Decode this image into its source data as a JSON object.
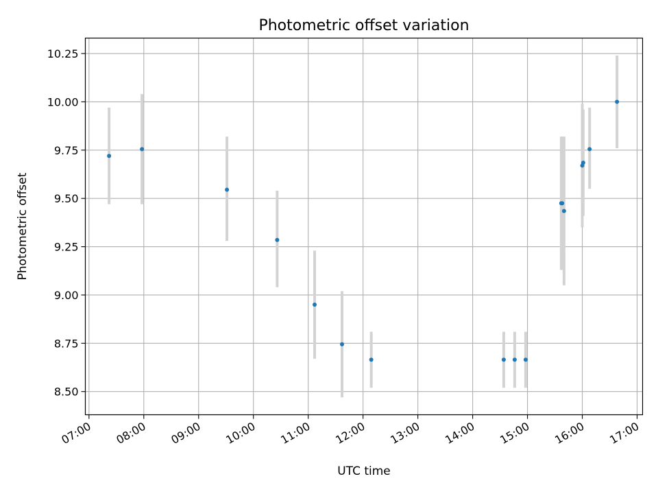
{
  "chart_data": {
    "type": "scatter",
    "title": "Photometric offset variation",
    "xlabel": "UTC time",
    "ylabel": "Photometric offset",
    "x_ticks": [
      "07:00",
      "08:00",
      "09:00",
      "10:00",
      "11:00",
      "12:00",
      "13:00",
      "14:00",
      "15:00",
      "16:00",
      "17:00"
    ],
    "y_ticks": [
      "8.50",
      "8.75",
      "9.00",
      "9.25",
      "9.50",
      "9.75",
      "10.00",
      "10.25"
    ],
    "xlim": [
      "06:56",
      "17:06"
    ],
    "ylim": [
      8.38,
      10.33
    ],
    "grid": true,
    "marker_color": "#1f77b4",
    "errorbar_color": "#d3d3d3",
    "points": [
      {
        "x": "07:22",
        "y": 9.72,
        "ylow": 9.47,
        "yhigh": 9.97
      },
      {
        "x": "07:58",
        "y": 9.755,
        "ylow": 9.47,
        "yhigh": 10.04
      },
      {
        "x": "09:31",
        "y": 9.545,
        "ylow": 9.28,
        "yhigh": 9.82
      },
      {
        "x": "10:26",
        "y": 9.285,
        "ylow": 9.04,
        "yhigh": 9.54
      },
      {
        "x": "11:07",
        "y": 8.95,
        "ylow": 8.67,
        "yhigh": 9.23
      },
      {
        "x": "11:37",
        "y": 8.745,
        "ylow": 8.47,
        "yhigh": 9.02
      },
      {
        "x": "12:09",
        "y": 8.665,
        "ylow": 8.52,
        "yhigh": 8.81
      },
      {
        "x": "14:34",
        "y": 8.665,
        "ylow": 8.52,
        "yhigh": 8.81
      },
      {
        "x": "14:46",
        "y": 8.665,
        "ylow": 8.52,
        "yhigh": 8.81
      },
      {
        "x": "14:58",
        "y": 8.665,
        "ylow": 8.52,
        "yhigh": 8.81
      },
      {
        "x": "15:37",
        "y": 9.475,
        "ylow": 9.13,
        "yhigh": 9.82
      },
      {
        "x": "15:38",
        "y": 9.475,
        "ylow": 9.13,
        "yhigh": 9.82
      },
      {
        "x": "15:40",
        "y": 9.435,
        "ylow": 9.05,
        "yhigh": 9.82
      },
      {
        "x": "16:00",
        "y": 9.67,
        "ylow": 9.35,
        "yhigh": 9.99
      },
      {
        "x": "16:01",
        "y": 9.685,
        "ylow": 9.41,
        "yhigh": 9.96
      },
      {
        "x": "16:08",
        "y": 9.755,
        "ylow": 9.55,
        "yhigh": 9.97
      },
      {
        "x": "16:38",
        "y": 10.0,
        "ylow": 9.76,
        "yhigh": 10.24
      }
    ]
  }
}
